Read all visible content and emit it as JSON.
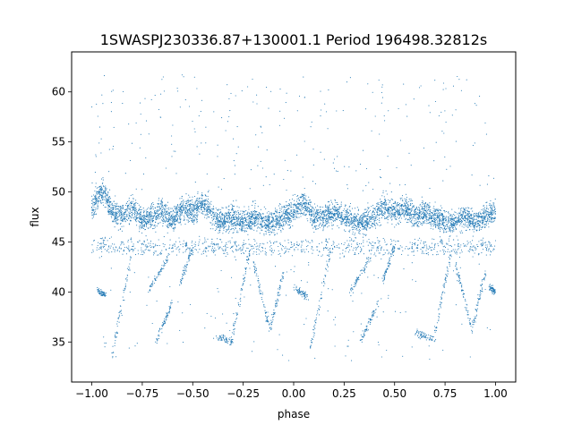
{
  "chart_data": {
    "type": "scatter",
    "title": "1SWASPJ230336.87+130001.1 Period 196498.32812s",
    "xlabel": "phase",
    "ylabel": "flux",
    "xlim": [
      -1.1,
      1.1
    ],
    "ylim": [
      31,
      64
    ],
    "xticks": [
      -1.0,
      -0.75,
      -0.5,
      -0.25,
      0.0,
      0.25,
      0.5,
      0.75,
      1.0
    ],
    "xtick_labels": [
      "−1.00",
      "−0.75",
      "−0.50",
      "−0.25",
      "0.00",
      "0.25",
      "0.50",
      "0.75",
      "1.00"
    ],
    "yticks": [
      35,
      40,
      45,
      50,
      55,
      60
    ],
    "ytick_labels": [
      "35",
      "40",
      "45",
      "50",
      "55",
      "60"
    ],
    "grid": false,
    "legend": "none",
    "series": [
      {
        "color": "#1f77b4",
        "point_count": "many",
        "x": [
          -1.0,
          -0.97,
          -0.94,
          -0.9,
          -0.85,
          -0.8,
          -0.75,
          -0.7,
          -0.65,
          -0.6,
          -0.55,
          -0.5,
          -0.45,
          -0.4,
          -0.35,
          -0.3,
          -0.25,
          -0.2,
          -0.15,
          -0.1,
          -0.05,
          0.0,
          0.05,
          0.1,
          0.15,
          0.2,
          0.25,
          0.3,
          0.35,
          0.4,
          0.45,
          0.5,
          0.55,
          0.6,
          0.65,
          0.7,
          0.75,
          0.8,
          0.85,
          0.9,
          0.95,
          1.0
        ],
        "y": [
          48.5,
          49.5,
          50.0,
          48.0,
          47.5,
          48.5,
          47.0,
          47.5,
          48.0,
          47.0,
          48.5,
          48.0,
          49.0,
          47.5,
          47.0,
          47.5,
          47.0,
          47.5,
          47.0,
          47.0,
          47.5,
          48.0,
          49.0,
          47.5,
          47.5,
          48.0,
          47.5,
          47.0,
          47.0,
          47.5,
          48.5,
          48.0,
          48.5,
          47.5,
          48.0,
          47.5,
          47.0,
          47.0,
          47.5,
          47.0,
          47.5,
          48.0
        ]
      }
    ]
  }
}
